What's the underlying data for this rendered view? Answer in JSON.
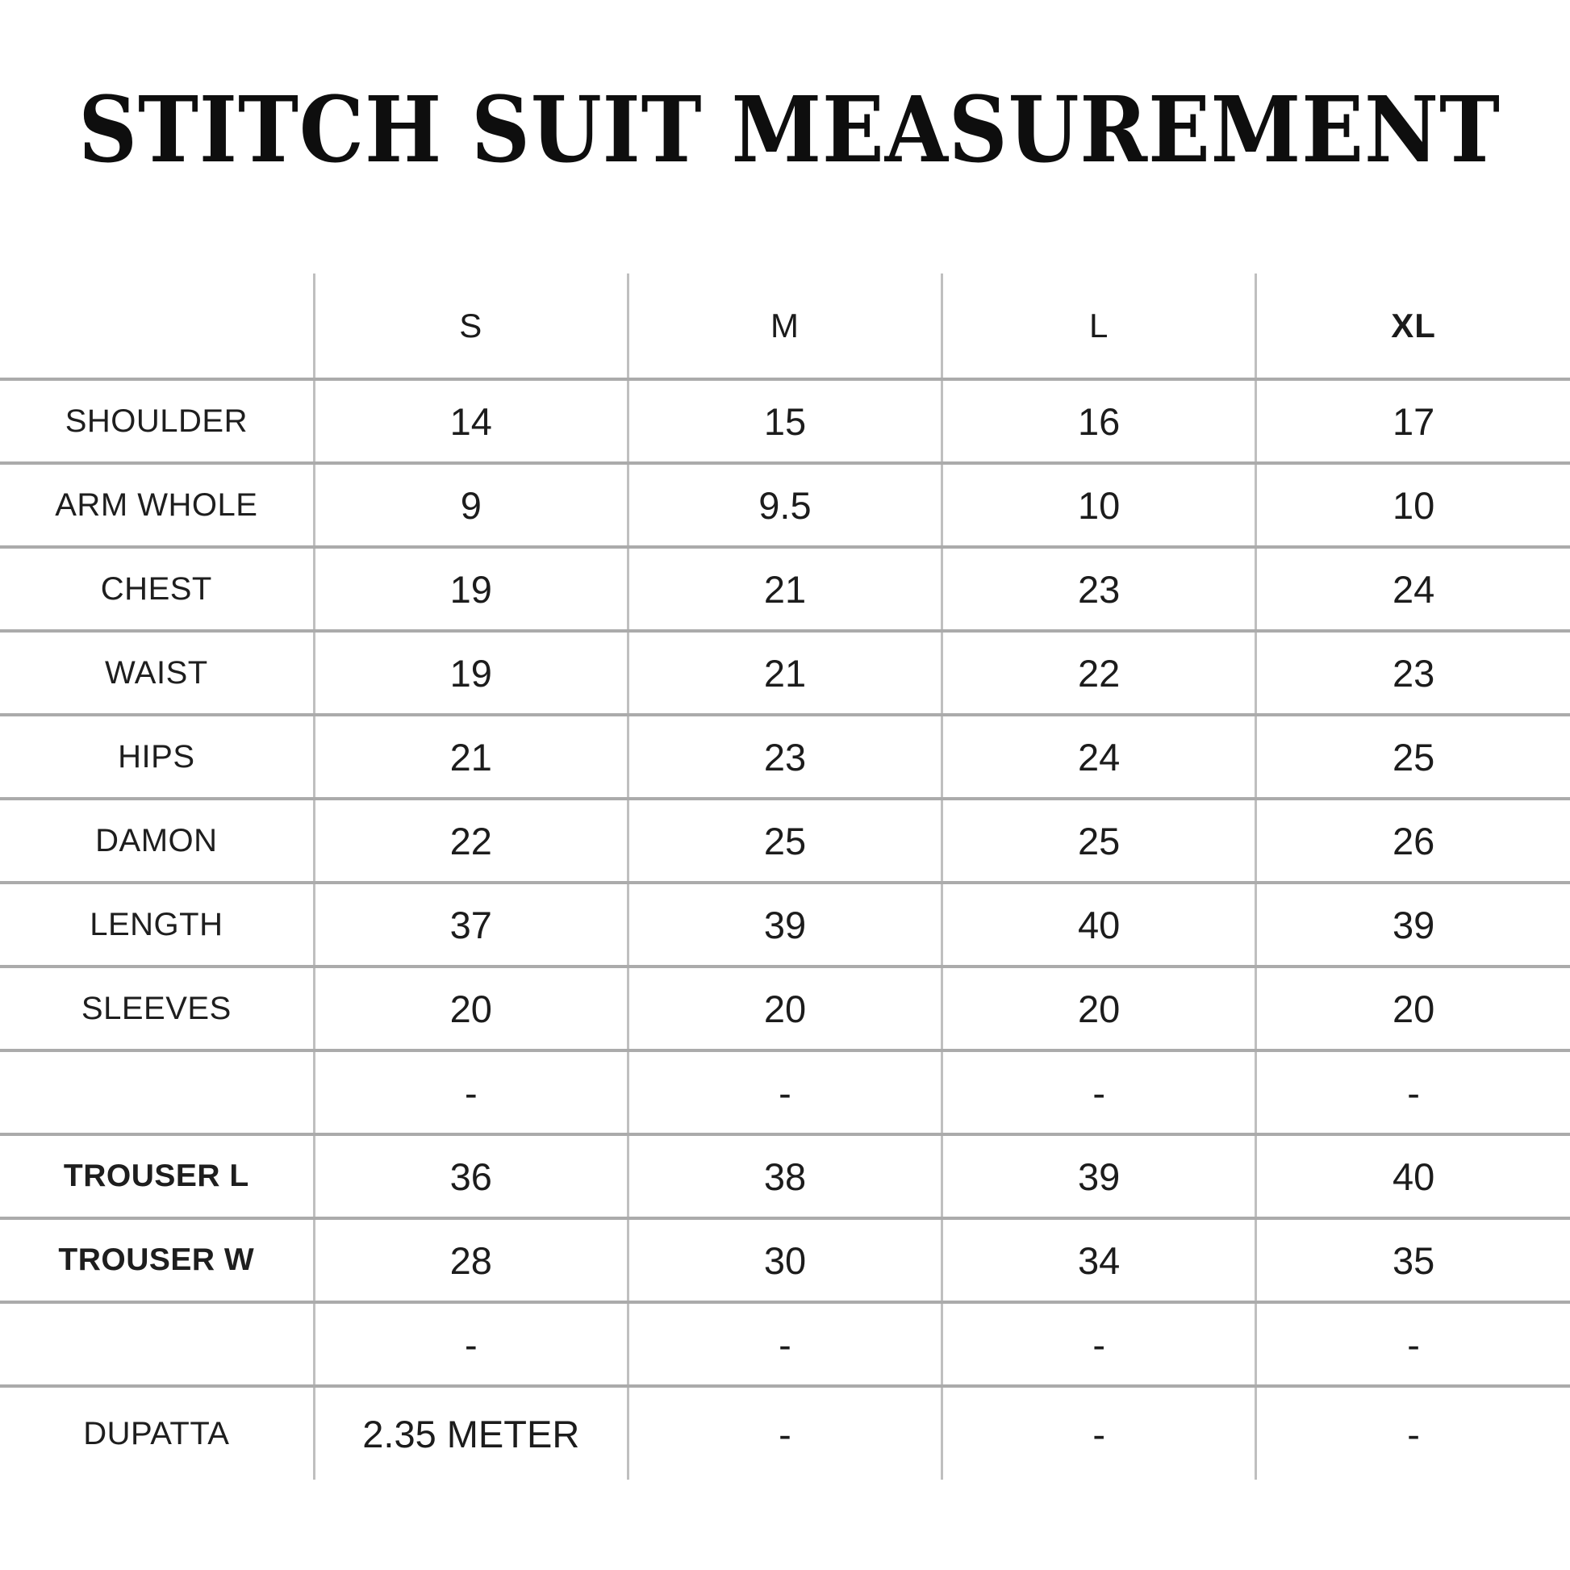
{
  "title": "STITCH SUIT MEASUREMENT",
  "colors": {
    "background": "#ffffff",
    "text": "#1c1c1c",
    "horizontal_rule": "#ababab",
    "vertical_rule": "#bfbfbf"
  },
  "table": {
    "corner_label": "",
    "columns": [
      "S",
      "M",
      "L",
      "XL"
    ],
    "rows": [
      {
        "label": "SHOULDER",
        "values": [
          "14",
          "15",
          "16",
          "17"
        ]
      },
      {
        "label": "ARM WHOLE",
        "values": [
          "9",
          "9.5",
          "10",
          "10"
        ]
      },
      {
        "label": "CHEST",
        "values": [
          "19",
          "21",
          "23",
          "24"
        ]
      },
      {
        "label": "WAIST",
        "values": [
          "19",
          "21",
          "22",
          "23"
        ]
      },
      {
        "label": "HIPS",
        "values": [
          "21",
          "23",
          "24",
          "25"
        ]
      },
      {
        "label": "DAMON",
        "values": [
          "22",
          "25",
          "25",
          "26"
        ]
      },
      {
        "label": "LENGTH",
        "values": [
          "37",
          "39",
          "40",
          "39"
        ]
      },
      {
        "label": "SLEEVES",
        "values": [
          "20",
          "20",
          "20",
          "20"
        ]
      },
      {
        "label": "",
        "values": [
          "-",
          "-",
          "-",
          "-"
        ]
      },
      {
        "label": "TROUSER L",
        "values": [
          "36",
          "38",
          "39",
          "40"
        ]
      },
      {
        "label": "TROUSER W",
        "values": [
          "28",
          "30",
          "34",
          "35"
        ]
      },
      {
        "label": "",
        "values": [
          "-",
          "-",
          "-",
          "-"
        ]
      },
      {
        "label": "DUPATTA",
        "values": [
          "2.35 METER",
          "-",
          "-",
          "-"
        ]
      }
    ]
  }
}
